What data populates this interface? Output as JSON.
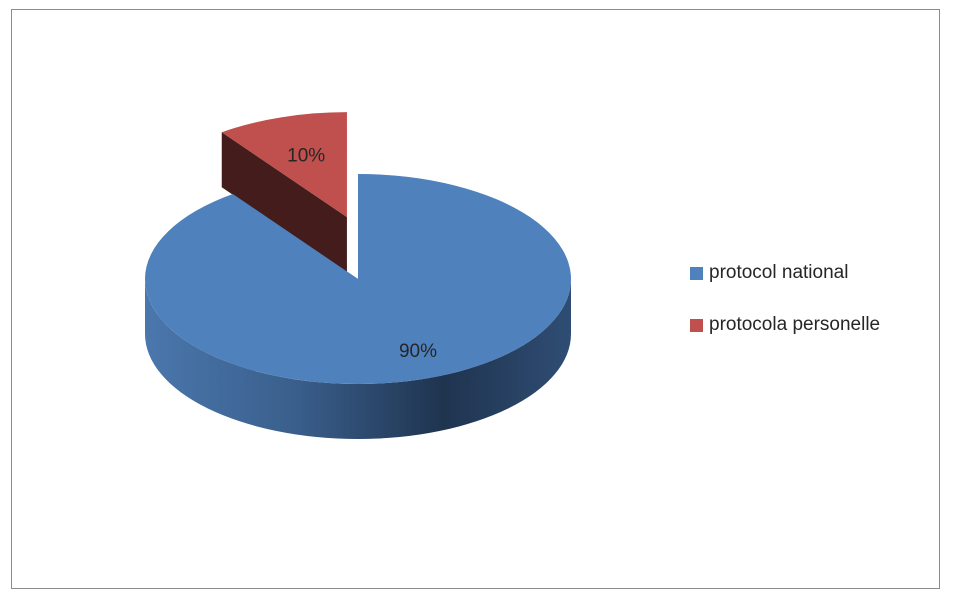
{
  "chart_data": {
    "type": "pie",
    "title": "",
    "three_d": true,
    "legend_position": "right",
    "categories": [
      "protocol national",
      "protocola personelle"
    ],
    "values": [
      90,
      10
    ],
    "data_labels": [
      "90%",
      "10%"
    ],
    "colors": [
      "#4f81bd",
      "#c0504d"
    ],
    "exploded": [
      false,
      true
    ]
  }
}
